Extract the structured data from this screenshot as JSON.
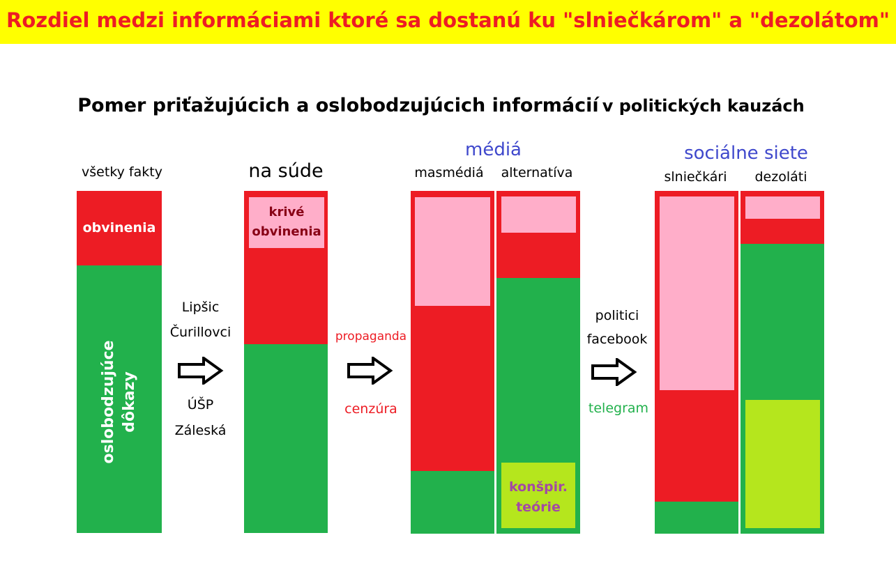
{
  "banner": {
    "title": "Rozdiel medzi informáciami ktoré sa dostanú ku \"slniečkárom\" a \"dezolátom\""
  },
  "subtitle": {
    "part1": "Pomer priťažujúcich a oslobodzujúcich informácií",
    "part2": "v politických kauzách"
  },
  "column_all": {
    "heading": "všetky fakty",
    "segment_red": "obvinenia",
    "segment_green_line1": "oslobodzujúce",
    "segment_green_line2": "dôkazy"
  },
  "stage1": {
    "line1": "Lipšic",
    "line2": "Čurillovci",
    "line3": "ÚŠP",
    "line4": "Záleská"
  },
  "column_court": {
    "heading": "na súde",
    "segment_pink_line1": "krivé",
    "segment_pink_line2": "obvinenia"
  },
  "stage2": {
    "top": "propaganda",
    "bottom": "cenzúra"
  },
  "media": {
    "group_heading": "médiá",
    "mass_heading": "masmédiá",
    "alt_heading": "alternatíva",
    "alt_lime_line1": "konšpir.",
    "alt_lime_line2": "teórie"
  },
  "stage3": {
    "line1": "politici",
    "line2": "facebook",
    "line3": "telegram"
  },
  "social": {
    "group_heading": "sociálne siete",
    "left_heading": "slniečkári",
    "right_heading": "dezoláti"
  },
  "colors": {
    "banner_bg": "#ffff00",
    "banner_text": "#ed1c24",
    "red": "#ed1c24",
    "green": "#22b14c",
    "pink": "#ffaec9",
    "lime": "#b5e61d",
    "blue_heading": "#3f48cc",
    "purple_text": "#a349a4",
    "dark_red_text": "#880015"
  }
}
